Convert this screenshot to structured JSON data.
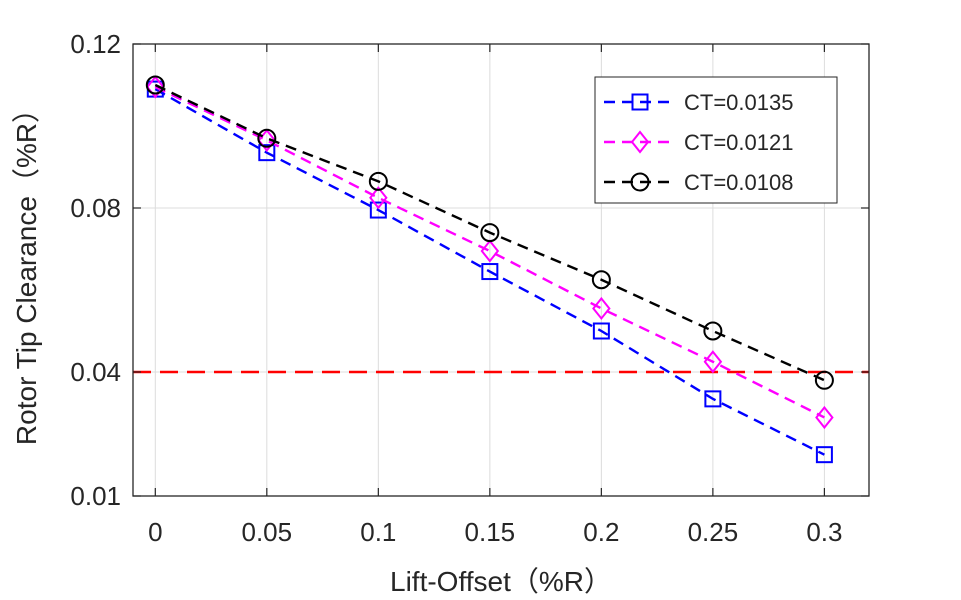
{
  "chart_data": {
    "type": "line",
    "xlabel": "Lift-Offset（%R）",
    "ylabel": "Rotor Tip Clearance（%R）",
    "x": [
      0,
      0.05,
      0.1,
      0.15,
      0.2,
      0.25,
      0.3
    ],
    "x_tick_labels": [
      "0",
      "0.05",
      "0.1",
      "0.15",
      "0.2",
      "0.25",
      "0.3"
    ],
    "y_ticks": [
      0.01,
      0.04,
      0.08,
      0.12
    ],
    "y_tick_labels": [
      "0.01",
      "0.04",
      "0.08",
      "0.12"
    ],
    "xlim": [
      -0.01,
      0.32
    ],
    "ylim": [
      0.01,
      0.12
    ],
    "grid": true,
    "legend_position": "top-right",
    "reference_line": {
      "y": 0.04,
      "color": "#ff0000",
      "style": "dashed"
    },
    "series": [
      {
        "name": "CT=0.0135",
        "color": "#0000ff",
        "marker": "square",
        "values": [
          0.109,
          0.0935,
          0.0795,
          0.0645,
          0.05,
          0.0335,
          0.02
        ]
      },
      {
        "name": "CT=0.0121",
        "color": "#ff00ff",
        "marker": "diamond",
        "values": [
          0.1095,
          0.0965,
          0.0825,
          0.0695,
          0.0555,
          0.0425,
          0.029
        ]
      },
      {
        "name": "CT=0.0108",
        "color": "#000000",
        "marker": "circle",
        "values": [
          0.11,
          0.097,
          0.0865,
          0.074,
          0.0625,
          0.05,
          0.038
        ]
      }
    ]
  }
}
